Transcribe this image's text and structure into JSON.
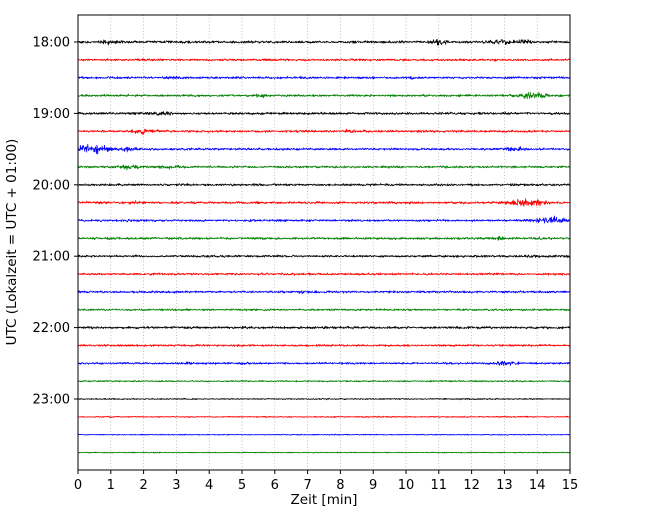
{
  "figure": {
    "background": "#ffffff"
  },
  "chart_data": {
    "type": "line",
    "subtype": "seismogram-dayplot",
    "title": "",
    "xlabel": "Zeit  [min]",
    "ylabel": "UTC (Lokalzeit = UTC + 01:00)",
    "xlim": [
      0,
      15
    ],
    "x_ticks": [
      0,
      1,
      2,
      3,
      4,
      5,
      6,
      7,
      8,
      9,
      10,
      11,
      12,
      13,
      14,
      15
    ],
    "y_tick_labels": [
      "18:00",
      "19:00",
      "20:00",
      "21:00",
      "22:00",
      "23:00"
    ],
    "grid": {
      "vertical": true,
      "horizontal": false,
      "style": "dotted",
      "color": "#b0b0b0"
    },
    "minutes_per_row": 15,
    "color_cycle": [
      "#000000",
      "#ff0000",
      "#0000ff",
      "#008000"
    ],
    "traces": [
      {
        "start": "18:00",
        "color": "#000000",
        "noise_amp": 1.0,
        "bursts": [
          {
            "t": 1.0,
            "a": 0.8,
            "w": 0.3
          },
          {
            "t": 11.0,
            "a": 1.2,
            "w": 0.25
          },
          {
            "t": 13.0,
            "a": 1.0,
            "w": 0.4
          },
          {
            "t": 13.6,
            "a": 0.8,
            "w": 0.2
          }
        ]
      },
      {
        "start": "18:15",
        "color": "#ff0000",
        "noise_amp": 0.9,
        "bursts": [
          {
            "t": 2.0,
            "a": 0.4,
            "w": 0.3
          }
        ]
      },
      {
        "start": "18:30",
        "color": "#0000ff",
        "noise_amp": 0.9,
        "bursts": [
          {
            "t": 3.0,
            "a": 0.5,
            "w": 0.2
          },
          {
            "t": 10.2,
            "a": 0.4,
            "w": 0.2
          }
        ]
      },
      {
        "start": "18:45",
        "color": "#008000",
        "noise_amp": 0.9,
        "bursts": [
          {
            "t": 5.6,
            "a": 0.5,
            "w": 0.2
          },
          {
            "t": 13.9,
            "a": 1.4,
            "w": 0.5
          }
        ]
      },
      {
        "start": "19:00",
        "color": "#000000",
        "noise_amp": 1.0,
        "bursts": [
          {
            "t": 2.5,
            "a": 0.5,
            "w": 0.4
          }
        ]
      },
      {
        "start": "19:15",
        "color": "#ff0000",
        "noise_amp": 0.9,
        "bursts": [
          {
            "t": 2.0,
            "a": 0.8,
            "w": 0.4
          },
          {
            "t": 8.3,
            "a": 0.7,
            "w": 0.15
          }
        ]
      },
      {
        "start": "19:30",
        "color": "#0000ff",
        "noise_amp": 0.9,
        "bursts": [
          {
            "t": 0.4,
            "a": 2.2,
            "w": 0.5
          },
          {
            "t": 1.5,
            "a": 0.8,
            "w": 0.3
          },
          {
            "t": 13.3,
            "a": 0.8,
            "w": 0.4
          }
        ]
      },
      {
        "start": "19:45",
        "color": "#008000",
        "noise_amp": 0.9,
        "bursts": [
          {
            "t": 1.5,
            "a": 0.8,
            "w": 0.3
          },
          {
            "t": 2.8,
            "a": 0.6,
            "w": 0.3
          }
        ]
      },
      {
        "start": "20:00",
        "color": "#000000",
        "noise_amp": 0.9,
        "bursts": []
      },
      {
        "start": "20:15",
        "color": "#ff0000",
        "noise_amp": 0.9,
        "bursts": [
          {
            "t": 1.7,
            "a": 0.5,
            "w": 0.2
          },
          {
            "t": 13.7,
            "a": 1.5,
            "w": 0.6
          }
        ]
      },
      {
        "start": "20:30",
        "color": "#0000ff",
        "noise_amp": 0.9,
        "bursts": [
          {
            "t": 1.5,
            "a": 0.4,
            "w": 0.2
          },
          {
            "t": 14.4,
            "a": 1.5,
            "w": 0.5
          }
        ]
      },
      {
        "start": "20:45",
        "color": "#008000",
        "noise_amp": 0.9,
        "bursts": [
          {
            "t": 12.9,
            "a": 0.6,
            "w": 0.2
          },
          {
            "t": 14.0,
            "a": 0.5,
            "w": 0.15
          }
        ]
      },
      {
        "start": "21:00",
        "color": "#000000",
        "noise_amp": 0.9,
        "bursts": [
          {
            "t": 13.9,
            "a": 0.6,
            "w": 0.15
          }
        ]
      },
      {
        "start": "21:15",
        "color": "#ff0000",
        "noise_amp": 0.9,
        "bursts": []
      },
      {
        "start": "21:30",
        "color": "#0000ff",
        "noise_amp": 0.9,
        "bursts": [
          {
            "t": 6.9,
            "a": 0.5,
            "w": 0.15
          }
        ]
      },
      {
        "start": "21:45",
        "color": "#008000",
        "noise_amp": 0.8,
        "bursts": []
      },
      {
        "start": "22:00",
        "color": "#000000",
        "noise_amp": 1.0,
        "bursts": []
      },
      {
        "start": "22:15",
        "color": "#ff0000",
        "noise_amp": 0.8,
        "bursts": []
      },
      {
        "start": "22:30",
        "color": "#0000ff",
        "noise_amp": 0.8,
        "bursts": [
          {
            "t": 3.4,
            "a": 0.6,
            "w": 0.15
          },
          {
            "t": 5.0,
            "a": 0.5,
            "w": 0.15
          },
          {
            "t": 13.0,
            "a": 0.9,
            "w": 0.4
          }
        ]
      },
      {
        "start": "22:45",
        "color": "#008000",
        "noise_amp": 0.6,
        "bursts": []
      },
      {
        "start": "23:00",
        "color": "#000000",
        "noise_amp": 0.5,
        "bursts": []
      },
      {
        "start": "23:15",
        "color": "#ff0000",
        "noise_amp": 0.5,
        "bursts": []
      },
      {
        "start": "23:30",
        "color": "#0000ff",
        "noise_amp": 0.4,
        "bursts": []
      },
      {
        "start": "23:45",
        "color": "#008000",
        "noise_amp": 0.4,
        "bursts": []
      }
    ]
  }
}
